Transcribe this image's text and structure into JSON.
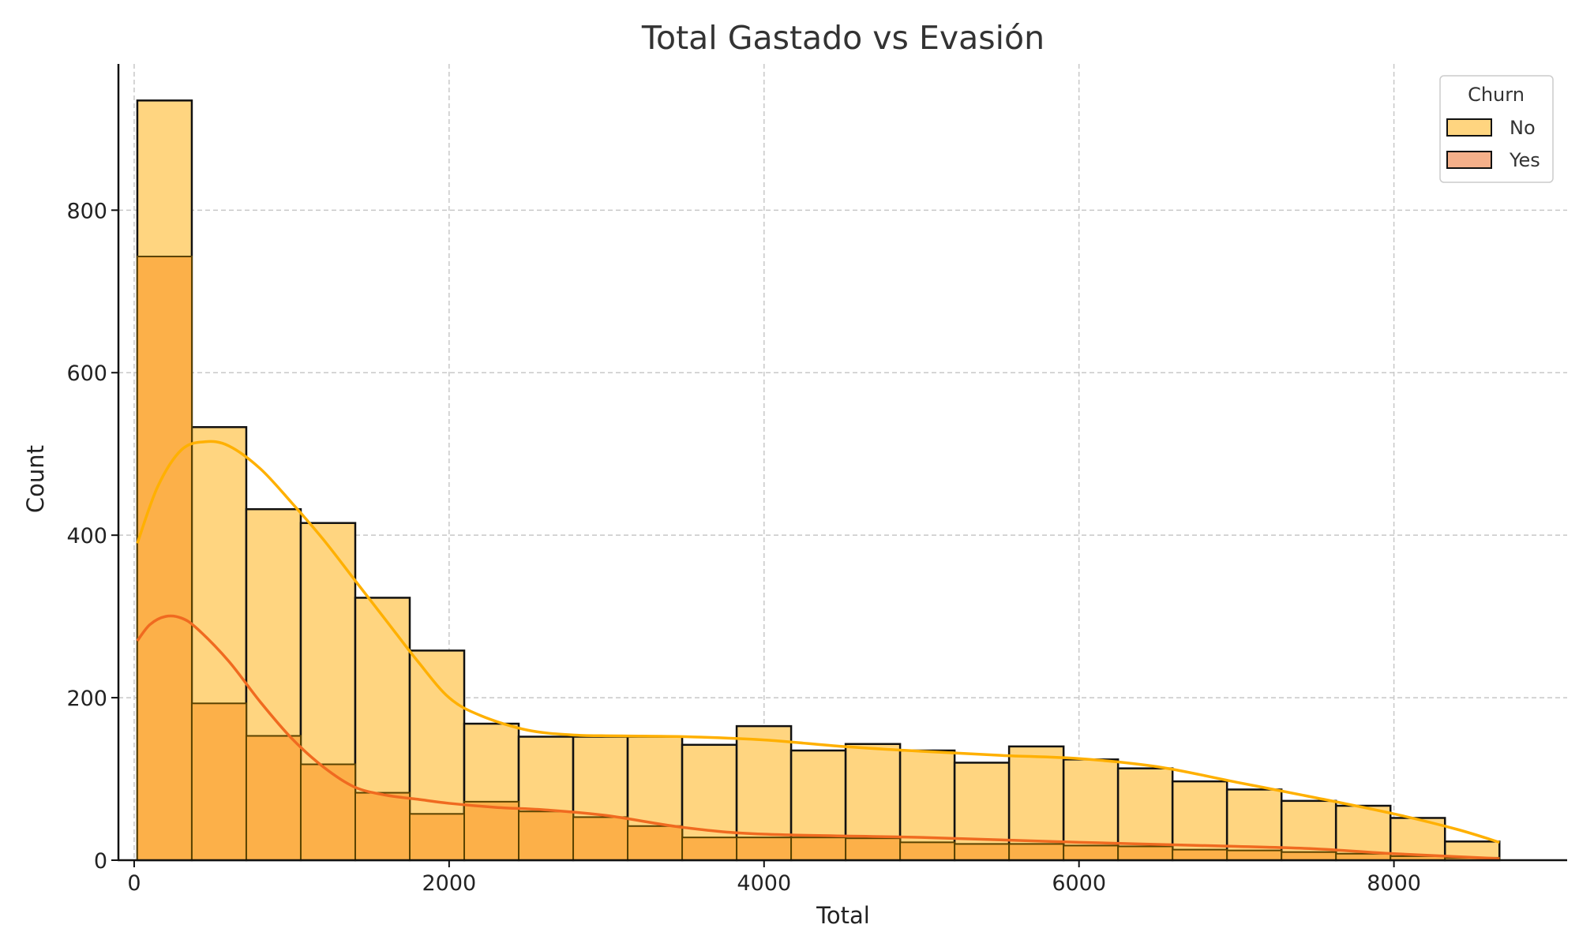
{
  "chart_data": {
    "type": "histogram",
    "title": "Total Gastado vs Evasión",
    "xlabel": "Total",
    "ylabel": "Count",
    "xlim": [
      -100,
      9100
    ],
    "ylim": [
      0,
      980
    ],
    "x_ticks": [
      0,
      2000,
      4000,
      6000,
      8000
    ],
    "y_ticks": [
      0,
      200,
      400,
      600,
      800
    ],
    "grid": true,
    "legend": {
      "title": "Churn",
      "placement": "top-right"
    },
    "bin_edges": [
      20,
      366,
      712,
      1058,
      1404,
      1750,
      2096,
      2442,
      2788,
      3134,
      3480,
      3826,
      4172,
      4518,
      4864,
      5210,
      5556,
      5902,
      6248,
      6594,
      6940,
      7286,
      7632,
      7978,
      8324,
      8670
    ],
    "series": [
      {
        "name": "No",
        "color": "#FFD580",
        "kde_color": "#FFB000",
        "values": [
          935,
          533,
          432,
          415,
          323,
          258,
          168,
          152,
          152,
          152,
          142,
          165,
          135,
          143,
          135,
          120,
          140,
          124,
          113,
          97,
          87,
          73,
          67,
          52,
          23
        ]
      },
      {
        "name": "Yes",
        "color": "#F5B08A",
        "kde_color": "#F06A20",
        "values": [
          743,
          193,
          153,
          118,
          83,
          57,
          72,
          60,
          53,
          42,
          28,
          28,
          28,
          27,
          22,
          20,
          20,
          18,
          17,
          13,
          12,
          10,
          8,
          5,
          3
        ]
      }
    ],
    "overlap_color": "#FCB049",
    "kde": [
      {
        "name": "No",
        "x": [
          20,
          150,
          300,
          450,
          600,
          800,
          1000,
          1200,
          1400,
          1600,
          1800,
          2000,
          2200,
          2500,
          2800,
          3100,
          3500,
          4000,
          4500,
          5000,
          5500,
          6000,
          6500,
          7000,
          7500,
          8000,
          8400,
          8670
        ],
        "y": [
          390,
          460,
          505,
          515,
          510,
          482,
          440,
          395,
          345,
          295,
          245,
          200,
          178,
          160,
          154,
          153,
          152,
          148,
          140,
          134,
          129,
          125,
          115,
          96,
          77,
          57,
          38,
          22
        ]
      },
      {
        "name": "Yes",
        "x": [
          20,
          100,
          200,
          300,
          400,
          600,
          800,
          1000,
          1200,
          1400,
          1600,
          1800,
          2000,
          2300,
          2600,
          3000,
          3500,
          4000,
          5000,
          6000,
          7000,
          7500,
          8000,
          8670
        ],
        "y": [
          270,
          290,
          300,
          298,
          285,
          245,
          195,
          150,
          115,
          90,
          80,
          75,
          70,
          65,
          62,
          55,
          40,
          32,
          28,
          22,
          17,
          14,
          8,
          2
        ]
      }
    ]
  }
}
